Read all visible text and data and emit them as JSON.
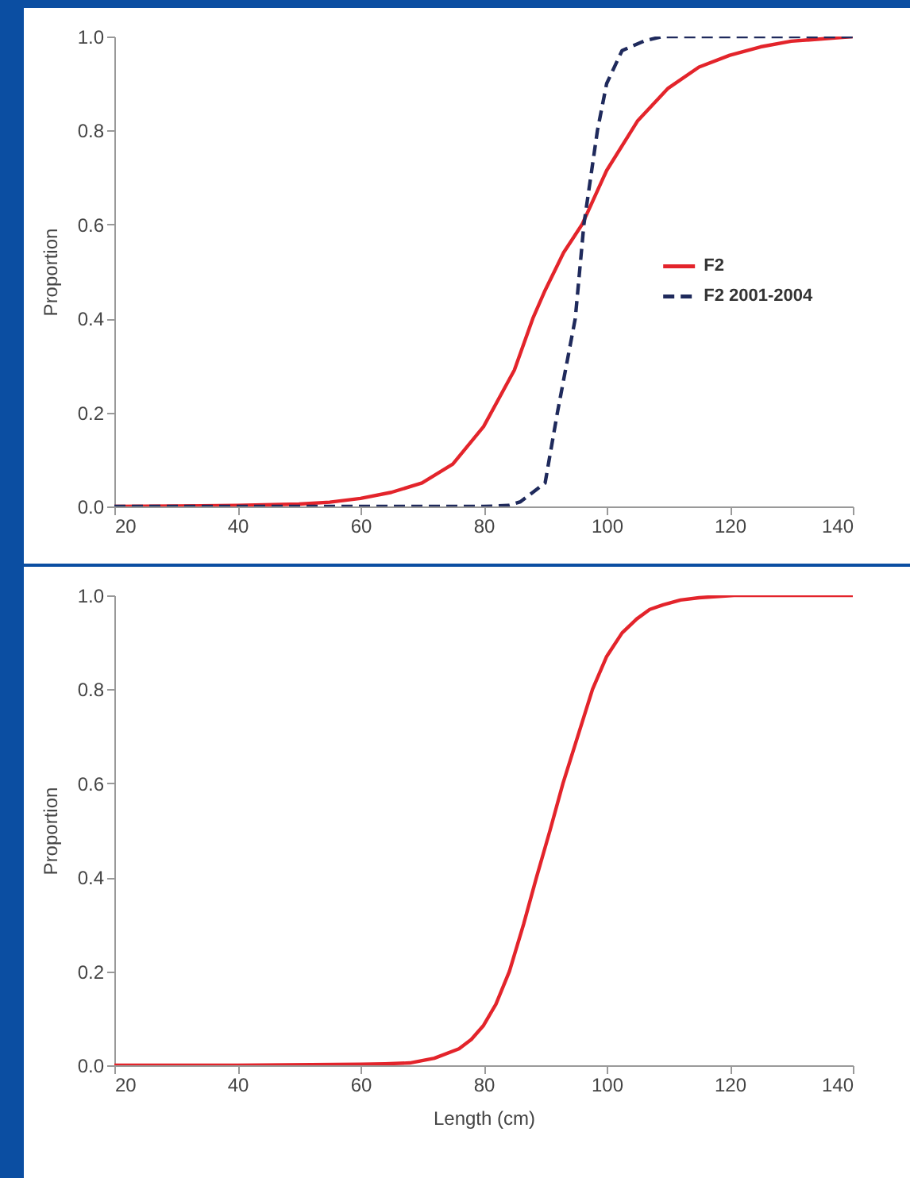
{
  "chart_data": [
    {
      "type": "line",
      "ylabel": "Proportion",
      "xlim": [
        20,
        140
      ],
      "xticks": [
        20,
        40,
        60,
        80,
        100,
        120,
        140
      ],
      "ylim": [
        0,
        1
      ],
      "yticks": [
        {
          "value": 0,
          "label": "0.0"
        },
        {
          "value": 0.2,
          "label": "0.2"
        },
        {
          "value": 0.4,
          "label": "0.4"
        },
        {
          "value": 0.6,
          "label": "0.6"
        },
        {
          "value": 0.8,
          "label": "0.8"
        },
        {
          "value": 1,
          "label": "1.0"
        }
      ],
      "grid": false,
      "legend": "right",
      "marker": "none",
      "series": [
        {
          "name": "F2",
          "color": "#e3242b",
          "line_style": "solid",
          "x": [
            20,
            30,
            40,
            50,
            55,
            60,
            65,
            70,
            75,
            80,
            85,
            88,
            90,
            93,
            96,
            100,
            105,
            110,
            115,
            120,
            125,
            130,
            135,
            140
          ],
          "values": [
            0,
            0.001,
            0.002,
            0.005,
            0.009,
            0.017,
            0.03,
            0.05,
            0.09,
            0.17,
            0.29,
            0.4,
            0.46,
            0.54,
            0.6,
            0.715,
            0.82,
            0.89,
            0.935,
            0.96,
            0.978,
            0.99,
            0.995,
            1.0
          ]
        },
        {
          "name": "F2 2001-2004",
          "color": "#1f2a5c",
          "line_style": "dashed",
          "x": [
            20,
            40,
            60,
            80,
            84,
            86,
            88,
            90,
            92,
            94.9,
            96.3,
            98.5,
            100,
            102.5,
            106,
            109,
            120,
            140
          ],
          "values": [
            0,
            0,
            0,
            0,
            0.002,
            0.01,
            0.03,
            0.05,
            0.2,
            0.4,
            0.6,
            0.8,
            0.9,
            0.97,
            0.99,
            1.0,
            1.0,
            1.0
          ]
        }
      ]
    },
    {
      "type": "line",
      "xlabel": "Length (cm)",
      "ylabel": "Proportion",
      "xlim": [
        20,
        140
      ],
      "xticks": [
        20,
        40,
        60,
        80,
        100,
        120,
        140
      ],
      "ylim": [
        0,
        1
      ],
      "yticks": [
        {
          "value": 0,
          "label": "0.0"
        },
        {
          "value": 0.2,
          "label": "0.2"
        },
        {
          "value": 0.4,
          "label": "0.4"
        },
        {
          "value": 0.6,
          "label": "0.6"
        },
        {
          "value": 0.8,
          "label": "0.8"
        },
        {
          "value": 1,
          "label": "1.0"
        }
      ],
      "grid": false,
      "legend": false,
      "marker": "none",
      "series": [
        {
          "color": "#e3242b",
          "line_style": "solid",
          "x": [
            20,
            40,
            60,
            64,
            68,
            72,
            76,
            78,
            80,
            82,
            84.2,
            86.5,
            88.6,
            90.8,
            92.9,
            95.3,
            97.7,
            100,
            102.5,
            104.9,
            107,
            109.2,
            112,
            115,
            120.7,
            130,
            140
          ],
          "values": [
            0,
            0,
            0.002,
            0.003,
            0.005,
            0.015,
            0.035,
            0.055,
            0.085,
            0.13,
            0.2,
            0.3,
            0.4,
            0.5,
            0.6,
            0.7,
            0.8,
            0.87,
            0.92,
            0.95,
            0.97,
            0.98,
            0.99,
            0.995,
            1.0,
            1.0,
            1.0
          ]
        }
      ]
    }
  ]
}
